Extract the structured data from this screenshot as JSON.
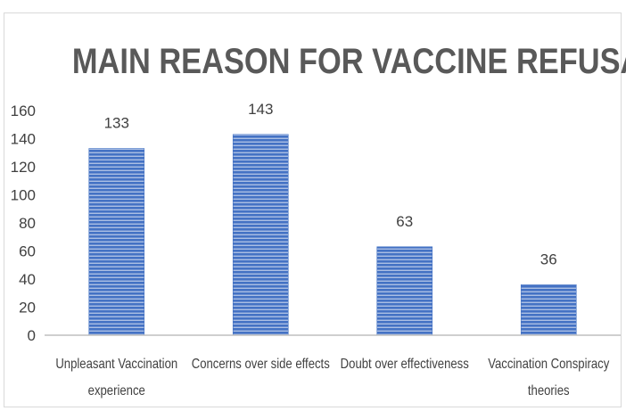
{
  "chart_data": {
    "type": "bar",
    "title": "MAIN REASON FOR VACCINE REFUSAL",
    "categories": [
      [
        "Unpleasant Vaccination",
        "experience"
      ],
      [
        "Concerns over side effects"
      ],
      [
        "Doubt over effectiveness"
      ],
      [
        "Vaccination Conspiracy",
        "theories"
      ]
    ],
    "values": [
      133,
      143,
      63,
      36
    ],
    "data_labels": [
      "133",
      "143",
      "63",
      "36"
    ],
    "y_ticks": [
      "0",
      "20",
      "40",
      "60",
      "80",
      "100",
      "120",
      "140",
      "160"
    ],
    "ylim": [
      0,
      160
    ],
    "grid": false,
    "legend": "none",
    "bar_color": "#4472c4",
    "bar_stripe_color": "#ffffff"
  }
}
